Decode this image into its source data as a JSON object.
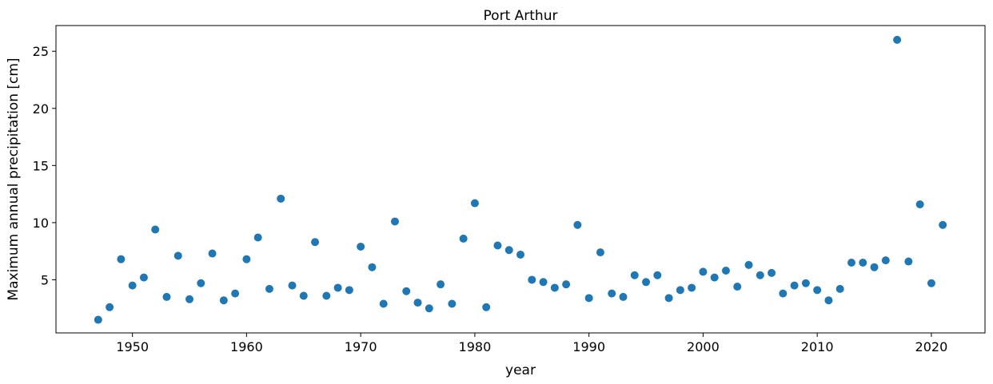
{
  "chart_data": {
    "type": "scatter",
    "title": "Port Arthur",
    "xlabel": "year",
    "ylabel": "Maximum annual precipitation [cm]",
    "xlim": [
      1943.3,
      2024.7
    ],
    "ylim": [
      0.35,
      27.25
    ],
    "xticks": [
      1950,
      1960,
      1970,
      1980,
      1990,
      2000,
      2010,
      2020
    ],
    "yticks": [
      5,
      10,
      15,
      20,
      25
    ],
    "grid": false,
    "marker_color": "#1f77b4",
    "x": [
      1947,
      1948,
      1949,
      1950,
      1951,
      1952,
      1953,
      1954,
      1955,
      1956,
      1957,
      1958,
      1959,
      1960,
      1961,
      1962,
      1963,
      1964,
      1965,
      1966,
      1967,
      1968,
      1969,
      1970,
      1971,
      1972,
      1973,
      1974,
      1975,
      1976,
      1977,
      1978,
      1979,
      1980,
      1981,
      1982,
      1983,
      1984,
      1985,
      1986,
      1987,
      1988,
      1989,
      1990,
      1991,
      1992,
      1993,
      1994,
      1995,
      1996,
      1997,
      1998,
      1999,
      2000,
      2001,
      2002,
      2003,
      2004,
      2005,
      2006,
      2007,
      2008,
      2009,
      2010,
      2011,
      2012,
      2013,
      2014,
      2015,
      2016,
      2017,
      2018,
      2019,
      2020,
      2021
    ],
    "y": [
      1.5,
      2.6,
      6.8,
      4.5,
      5.2,
      9.4,
      3.5,
      7.1,
      3.3,
      4.7,
      7.3,
      3.2,
      3.8,
      6.8,
      8.7,
      4.2,
      12.1,
      4.5,
      3.6,
      8.3,
      3.6,
      4.3,
      4.1,
      7.9,
      6.1,
      2.9,
      10.1,
      4.0,
      3.0,
      2.5,
      4.6,
      2.9,
      8.6,
      11.7,
      2.6,
      8.0,
      7.6,
      7.2,
      5.0,
      4.8,
      4.3,
      4.6,
      9.8,
      3.4,
      7.4,
      3.8,
      3.5,
      5.4,
      4.8,
      5.4,
      3.4,
      4.1,
      4.3,
      5.7,
      5.2,
      5.8,
      4.4,
      6.3,
      5.4,
      5.6,
      3.8,
      4.5,
      4.7,
      4.1,
      3.2,
      4.2,
      6.5,
      6.5,
      6.1,
      6.7,
      26.0,
      6.6,
      11.6,
      4.7,
      9.8
    ]
  }
}
